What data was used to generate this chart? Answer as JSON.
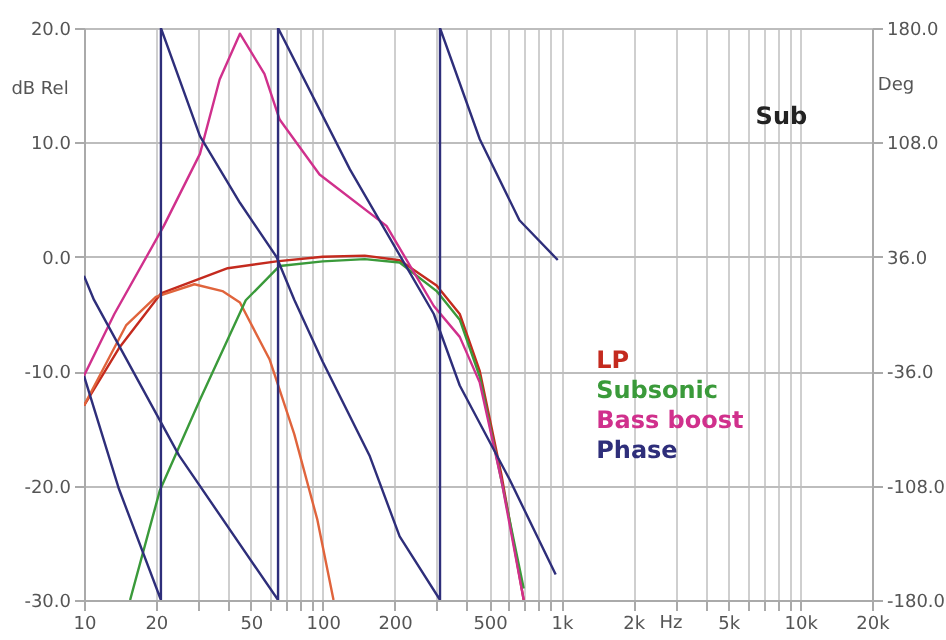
{
  "chart_data": {
    "type": "line",
    "xlabel": "Hz",
    "ylabel": "dB Rel",
    "y2label": "Deg",
    "annotations": [
      "Sub"
    ],
    "log": "x",
    "grid": true,
    "legend": "right",
    "xlim": [
      10,
      20000
    ],
    "xticks": [
      10,
      20,
      {
        "value": 30,
        "label": null
      },
      {
        "value": 40,
        "label": null
      },
      50,
      {
        "value": 60,
        "label": null
      },
      {
        "value": 70,
        "label": null
      },
      {
        "value": 80,
        "label": null
      },
      {
        "value": 90,
        "label": null
      },
      100,
      200,
      {
        "value": 300,
        "label": null
      },
      {
        "value": 400,
        "label": null
      },
      500,
      {
        "value": 600,
        "label": null
      },
      {
        "value": 700,
        "label": null
      },
      {
        "value": 800,
        "label": null
      },
      {
        "value": 900,
        "label": null
      },
      {
        "value": 1000,
        "label": "1k"
      },
      {
        "value": 2000,
        "label": "2k"
      },
      {
        "value": 3000,
        "label": null
      },
      {
        "value": 4000,
        "label": null
      },
      {
        "value": 5000,
        "label": "5k"
      },
      {
        "value": 6000,
        "label": null
      },
      {
        "value": 7000,
        "label": null
      },
      {
        "value": 8000,
        "label": null
      },
      {
        "value": 9000,
        "label": null
      },
      {
        "value": 10000,
        "label": "10k"
      },
      {
        "value": 20000,
        "label": "20k"
      }
    ],
    "ylim": [
      -30,
      20
    ],
    "yticks": [
      {
        "value": -30,
        "label": "-30.0"
      },
      {
        "value": -20,
        "label": "-20.0"
      },
      {
        "value": -10,
        "label": "-10.0"
      },
      {
        "value": 0,
        "label": "0.0"
      },
      {
        "value": 10,
        "label": "10.0"
      },
      {
        "value": 20,
        "label": "20.0"
      }
    ],
    "y2lim": [
      -180,
      180
    ],
    "y2ticks": [
      {
        "value": -180,
        "label": "-180.0"
      },
      {
        "value": -108,
        "label": "-108.0"
      },
      {
        "value": -36,
        "label": "-36.0"
      },
      {
        "value": 36,
        "label": "36.0"
      },
      {
        "value": 108,
        "label": "108.0"
      },
      {
        "value": 180,
        "label": "180.0"
      }
    ],
    "series": [
      {
        "name": "LP",
        "color": "#c42a1e",
        "x": [
          10,
          14,
          21,
          40,
          64,
          100,
          150,
          210,
          300,
          375,
          455,
          560,
          695
        ],
        "values": [
          -13,
          -8,
          -3.2,
          -1,
          -0.4,
          0,
          0.1,
          -0.3,
          -2.5,
          -5,
          -10,
          -19,
          -30
        ]
      },
      {
        "color": "#e0643c",
        "x": [
          10,
          15,
          20,
          29,
          38,
          45,
          60,
          76,
          95,
          111
        ],
        "values": [
          -13,
          -6,
          -3.5,
          -2.4,
          -3,
          -4,
          -9,
          -15.5,
          -23,
          -30
        ]
      },
      {
        "name": "Subsonic",
        "color": "#3a9a3a",
        "x": [
          15.6,
          20.8,
          30.6,
          47.6,
          66,
          100,
          150,
          210,
          300,
          375,
          455,
          560,
          695
        ],
        "values": [
          -30,
          -20.4,
          -12.5,
          -3.8,
          -0.8,
          -0.4,
          -0.2,
          -0.5,
          -3,
          -5.5,
          -10.5,
          -19.5,
          -29
        ]
      },
      {
        "name": "Bass boost",
        "color": "#d0308c",
        "x": [
          10,
          13.4,
          21.6,
          30.6,
          37,
          45,
          57,
          66,
          97,
          185,
          292,
          375,
          455,
          560,
          695
        ],
        "values": [
          -10.4,
          -5,
          2.7,
          9,
          15.5,
          19.5,
          16,
          12,
          7.2,
          2.7,
          -4.3,
          -7,
          -11,
          -19.5,
          -30
        ]
      },
      {
        "name": "Phase",
        "color": "#2e2e7a",
        "axis": "y2",
        "x": [
          10,
          14,
          21,
          21,
          30.6,
          45,
          64,
          76,
          100,
          157,
          210,
          310,
          310,
          455,
          667,
          965
        ],
        "values": [
          -39,
          -110,
          -180,
          180,
          112,
          70,
          36,
          9,
          -30,
          -89,
          -140,
          -180,
          180,
          110,
          59,
          34
        ]
      },
      {
        "color": "#2e2e7a",
        "axis": "y2",
        "x": [
          10,
          11,
          25,
          65,
          65,
          130,
          292,
          375,
          606,
          946
        ],
        "values": [
          24,
          9,
          -89,
          -180,
          180,
          91,
          0,
          -45,
          -104,
          -164
        ]
      }
    ]
  }
}
